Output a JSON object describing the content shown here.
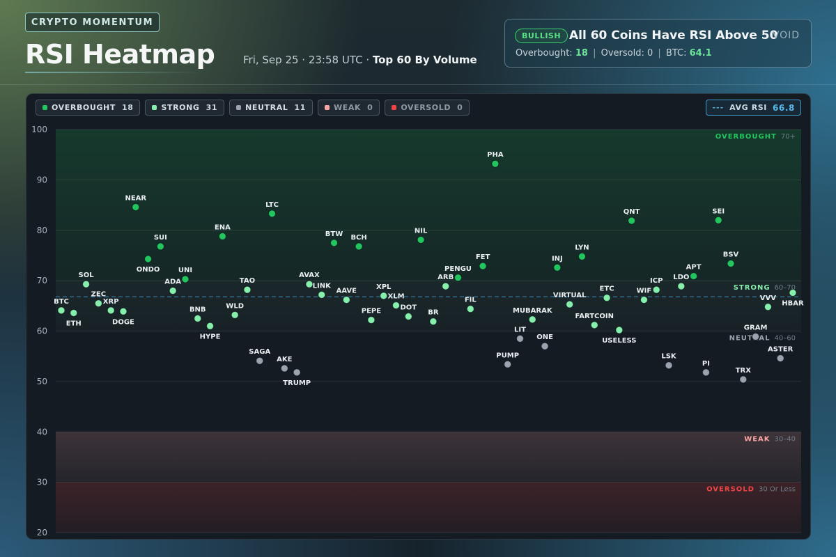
{
  "header": {
    "badge": "CRYPTO MOMENTUM",
    "title": "RSI Heatmap",
    "date_time": "Fri, Sep 25 · 23:58 UTC · ",
    "scope": "Top 60 By Volume"
  },
  "summary": {
    "pill": "BULLISH",
    "headline": "All 60 Coins Have RSI Above 50",
    "overbought_label": "Overbought: ",
    "overbought_value": "18",
    "oversold_label": "Oversold: ",
    "oversold_value": "0",
    "btc_label": "BTC: ",
    "btc_value": "64.1",
    "separator": "|",
    "logo": "VOID"
  },
  "legend": [
    {
      "label": "OVERBOUGHT",
      "count": "18",
      "color": "#22c55e"
    },
    {
      "label": "STRONG",
      "count": "31",
      "color": "#86efac"
    },
    {
      "label": "NEUTRAL",
      "count": "11",
      "color": "#9ca3af"
    },
    {
      "label": "WEAK",
      "count": "0",
      "color": "#fca5a5"
    },
    {
      "label": "OVERSOLD",
      "count": "0",
      "color": "#ef4444"
    }
  ],
  "avg": {
    "label": "AVG RSI",
    "value": "66.8",
    "dash": "---"
  },
  "chart_data": {
    "type": "scatter",
    "ylim": [
      20,
      100
    ],
    "yticks": [
      20,
      30,
      40,
      50,
      60,
      70,
      80,
      90,
      100
    ],
    "avg_rsi": 66.8,
    "zones": [
      {
        "name": "OVERBOUGHT",
        "range": "70+",
        "min": 70,
        "max": 100,
        "color": "#22c55e"
      },
      {
        "name": "STRONG",
        "range": "60–70",
        "min": 60,
        "max": 70,
        "color": "#86efac"
      },
      {
        "name": "NEUTRAL",
        "range": "40–60",
        "min": 40,
        "max": 60,
        "color": "#9ca3af"
      },
      {
        "name": "WEAK",
        "range": "30–40",
        "min": 30,
        "max": 40,
        "color": "#fca5a5"
      },
      {
        "name": "OVERSOLD",
        "range": "30 Or Less",
        "min": 20,
        "max": 30,
        "color": "#ef4444"
      }
    ],
    "points": [
      {
        "name": "BTC",
        "rsi": 64.1,
        "label": "above"
      },
      {
        "name": "ETH",
        "rsi": 63.6,
        "label": "below"
      },
      {
        "name": "SOL",
        "rsi": 69.3,
        "label": "above"
      },
      {
        "name": "ZEC",
        "rsi": 65.5,
        "label": "above"
      },
      {
        "name": "XRP",
        "rsi": 64.1,
        "label": "above"
      },
      {
        "name": "DOGE",
        "rsi": 63.9,
        "label": "below"
      },
      {
        "name": "NEAR",
        "rsi": 84.6,
        "label": "above"
      },
      {
        "name": "ONDO",
        "rsi": 74.3,
        "label": "below"
      },
      {
        "name": "SUI",
        "rsi": 76.8,
        "label": "above"
      },
      {
        "name": "ADA",
        "rsi": 68.0,
        "label": "above"
      },
      {
        "name": "UNI",
        "rsi": 70.3,
        "label": "above"
      },
      {
        "name": "BNB",
        "rsi": 62.5,
        "label": "above"
      },
      {
        "name": "HYPE",
        "rsi": 61.0,
        "label": "below"
      },
      {
        "name": "ENA",
        "rsi": 78.8,
        "label": "above"
      },
      {
        "name": "WLD",
        "rsi": 63.2,
        "label": "above"
      },
      {
        "name": "TAO",
        "rsi": 68.2,
        "label": "above"
      },
      {
        "name": "SAGA",
        "rsi": 54.1,
        "label": "above"
      },
      {
        "name": "LTC",
        "rsi": 83.3,
        "label": "above"
      },
      {
        "name": "AKE",
        "rsi": 52.6,
        "label": "above"
      },
      {
        "name": "TRUMP",
        "rsi": 51.8,
        "label": "below"
      },
      {
        "name": "AVAX",
        "rsi": 69.3,
        "label": "above"
      },
      {
        "name": "LINK",
        "rsi": 67.2,
        "label": "above"
      },
      {
        "name": "BTW",
        "rsi": 77.5,
        "label": "above"
      },
      {
        "name": "AAVE",
        "rsi": 66.2,
        "label": "above"
      },
      {
        "name": "BCH",
        "rsi": 76.8,
        "label": "above"
      },
      {
        "name": "PEPE",
        "rsi": 62.2,
        "label": "above"
      },
      {
        "name": "XPL",
        "rsi": 67.0,
        "label": "above"
      },
      {
        "name": "XLM",
        "rsi": 65.1,
        "label": "above"
      },
      {
        "name": "DOT",
        "rsi": 62.9,
        "label": "above"
      },
      {
        "name": "NIL",
        "rsi": 78.1,
        "label": "above"
      },
      {
        "name": "BR",
        "rsi": 61.9,
        "label": "above"
      },
      {
        "name": "ARB",
        "rsi": 68.9,
        "label": "above"
      },
      {
        "name": "PENGU",
        "rsi": 70.6,
        "label": "above"
      },
      {
        "name": "FIL",
        "rsi": 64.4,
        "label": "above"
      },
      {
        "name": "FET",
        "rsi": 72.9,
        "label": "above"
      },
      {
        "name": "PHA",
        "rsi": 93.2,
        "label": "above"
      },
      {
        "name": "PUMP",
        "rsi": 53.4,
        "label": "above"
      },
      {
        "name": "LIT",
        "rsi": 58.5,
        "label": "above"
      },
      {
        "name": "MUBARAK",
        "rsi": 62.3,
        "label": "above"
      },
      {
        "name": "ONE",
        "rsi": 57.0,
        "label": "above"
      },
      {
        "name": "INJ",
        "rsi": 72.6,
        "label": "above"
      },
      {
        "name": "VIRTUAL",
        "rsi": 65.3,
        "label": "above"
      },
      {
        "name": "LYN",
        "rsi": 74.8,
        "label": "above"
      },
      {
        "name": "FARTCOIN",
        "rsi": 61.2,
        "label": "above"
      },
      {
        "name": "ETC",
        "rsi": 66.6,
        "label": "above"
      },
      {
        "name": "USELESS",
        "rsi": 60.2,
        "label": "below"
      },
      {
        "name": "QNT",
        "rsi": 81.9,
        "label": "above"
      },
      {
        "name": "WIF",
        "rsi": 66.2,
        "label": "above"
      },
      {
        "name": "ICP",
        "rsi": 68.2,
        "label": "above"
      },
      {
        "name": "LSK",
        "rsi": 53.2,
        "label": "above"
      },
      {
        "name": "LDO",
        "rsi": 68.9,
        "label": "above"
      },
      {
        "name": "APT",
        "rsi": 70.9,
        "label": "above"
      },
      {
        "name": "PI",
        "rsi": 51.8,
        "label": "above"
      },
      {
        "name": "SEI",
        "rsi": 82.0,
        "label": "above"
      },
      {
        "name": "BSV",
        "rsi": 73.4,
        "label": "above"
      },
      {
        "name": "TRX",
        "rsi": 50.4,
        "label": "above"
      },
      {
        "name": "GRAM",
        "rsi": 58.9,
        "label": "above"
      },
      {
        "name": "VVV",
        "rsi": 64.8,
        "label": "above"
      },
      {
        "name": "ASTER",
        "rsi": 54.6,
        "label": "above"
      },
      {
        "name": "HBAR",
        "rsi": 67.6,
        "label": "below"
      }
    ]
  }
}
